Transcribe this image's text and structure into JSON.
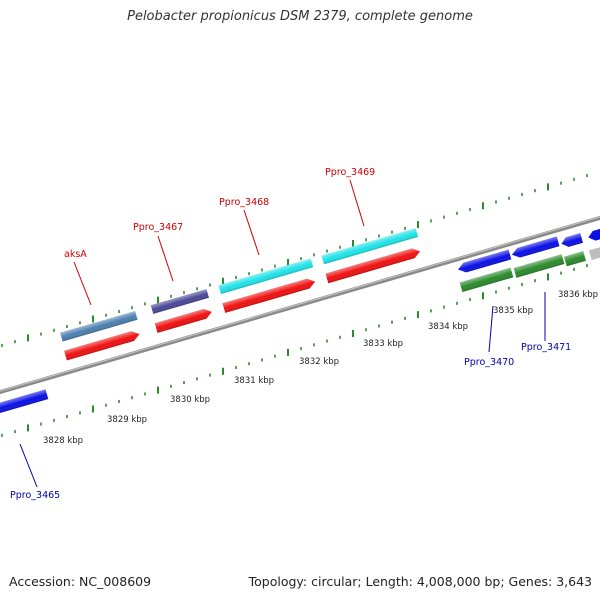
{
  "title": "Pelobacter propionicus DSM 2379, complete genome",
  "footer": {
    "accession": "Accession: NC_008609",
    "summary": "Topology: circular; Length: 4,008,000 bp; Genes: 3,643"
  },
  "colors": {
    "backbone": "#8a8a8a",
    "tick": "#2b8a2b",
    "label_forward": "#cc0000",
    "label_reverse": "#0000aa"
  },
  "scale_labels": [
    "3828 kbp",
    "3829 kbp",
    "3830 kbp",
    "3831 kbp",
    "3832 kbp",
    "3833 kbp",
    "3834 kbp",
    "3835 kbp",
    "3836 kbp"
  ],
  "gene_labels": [
    {
      "text": "aksA",
      "strand": "forward"
    },
    {
      "text": "Ppro_3467",
      "strand": "forward"
    },
    {
      "text": "Ppro_3468",
      "strand": "forward"
    },
    {
      "text": "Ppro_3469",
      "strand": "forward"
    },
    {
      "text": "Ppro_3465",
      "strand": "reverse"
    },
    {
      "text": "Ppro_3470",
      "strand": "reverse"
    },
    {
      "text": "Ppro_3471",
      "strand": "reverse"
    }
  ]
}
